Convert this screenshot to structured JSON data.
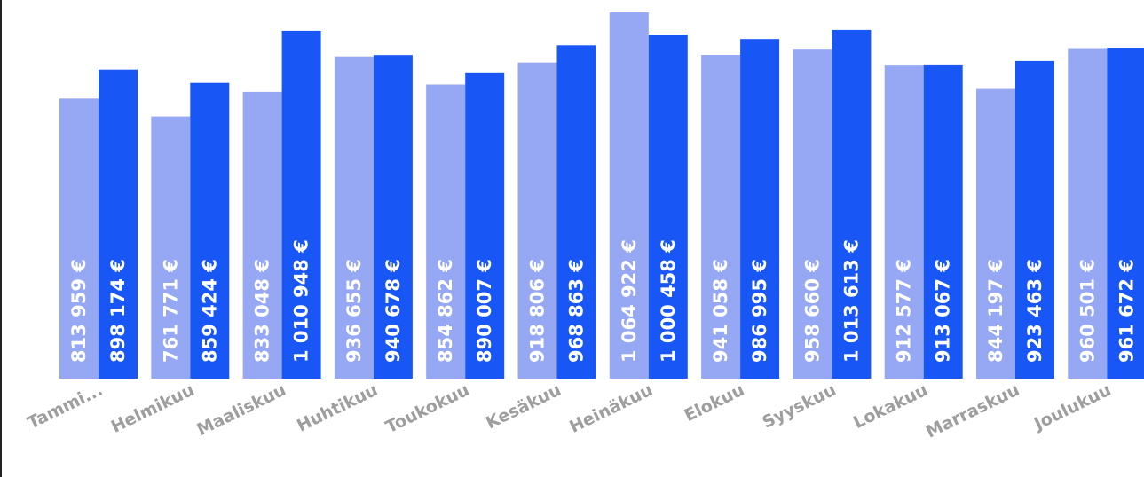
{
  "chart_data": {
    "type": "bar",
    "categories": [
      "Tammi...",
      "Helmikuu",
      "Maaliskuu",
      "Huhtikuu",
      "Toukokuu",
      "Kesäkuu",
      "Heinäkuu",
      "Elokuu",
      "Syyskuu",
      "Lokakuu",
      "Marraskuu",
      "Joulukuu"
    ],
    "series": [
      {
        "color": "#96a8f4",
        "values": [
          813959,
          761771,
          833048,
          936655,
          854862,
          918806,
          1064922,
          941058,
          958660,
          912577,
          844197,
          960501
        ],
        "labels": [
          "813 959 €",
          "761 771 €",
          "833 048 €",
          "936 655 €",
          "854 862 €",
          "918 806 €",
          "1 064 922 €",
          "941 058 €",
          "958 660 €",
          "912 577 €",
          "844 197 €",
          "960 501 €"
        ]
      },
      {
        "color": "#1857f5",
        "values": [
          898174,
          859424,
          1010948,
          940678,
          890007,
          968863,
          1000458,
          986995,
          1013613,
          913067,
          923463,
          961672
        ],
        "labels": [
          "898 174 €",
          "859 424 €",
          "1 010 948 €",
          "940 678 €",
          "890 007 €",
          "968 863 €",
          "1 000 458 €",
          "986 995 €",
          "1 013 613 €",
          "913 067 €",
          "923 463 €",
          "961 672 €"
        ]
      }
    ],
    "ylim": [
      0,
      1064922
    ],
    "grid": false,
    "legend": "none",
    "title": "",
    "xlabel": "",
    "ylabel": ""
  }
}
